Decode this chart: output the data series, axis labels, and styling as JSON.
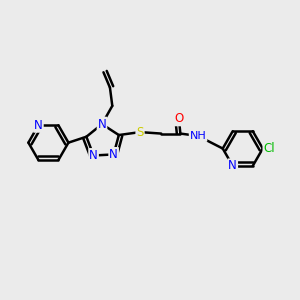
{
  "bg_color": "#ebebeb",
  "atom_colors": {
    "N": "#0000ff",
    "O": "#ff0000",
    "S": "#cccc00",
    "Cl": "#00bb00",
    "C": "#000000",
    "H": "#333333"
  },
  "bond_color": "#000000",
  "bond_width": 1.8,
  "font_size": 8.5
}
